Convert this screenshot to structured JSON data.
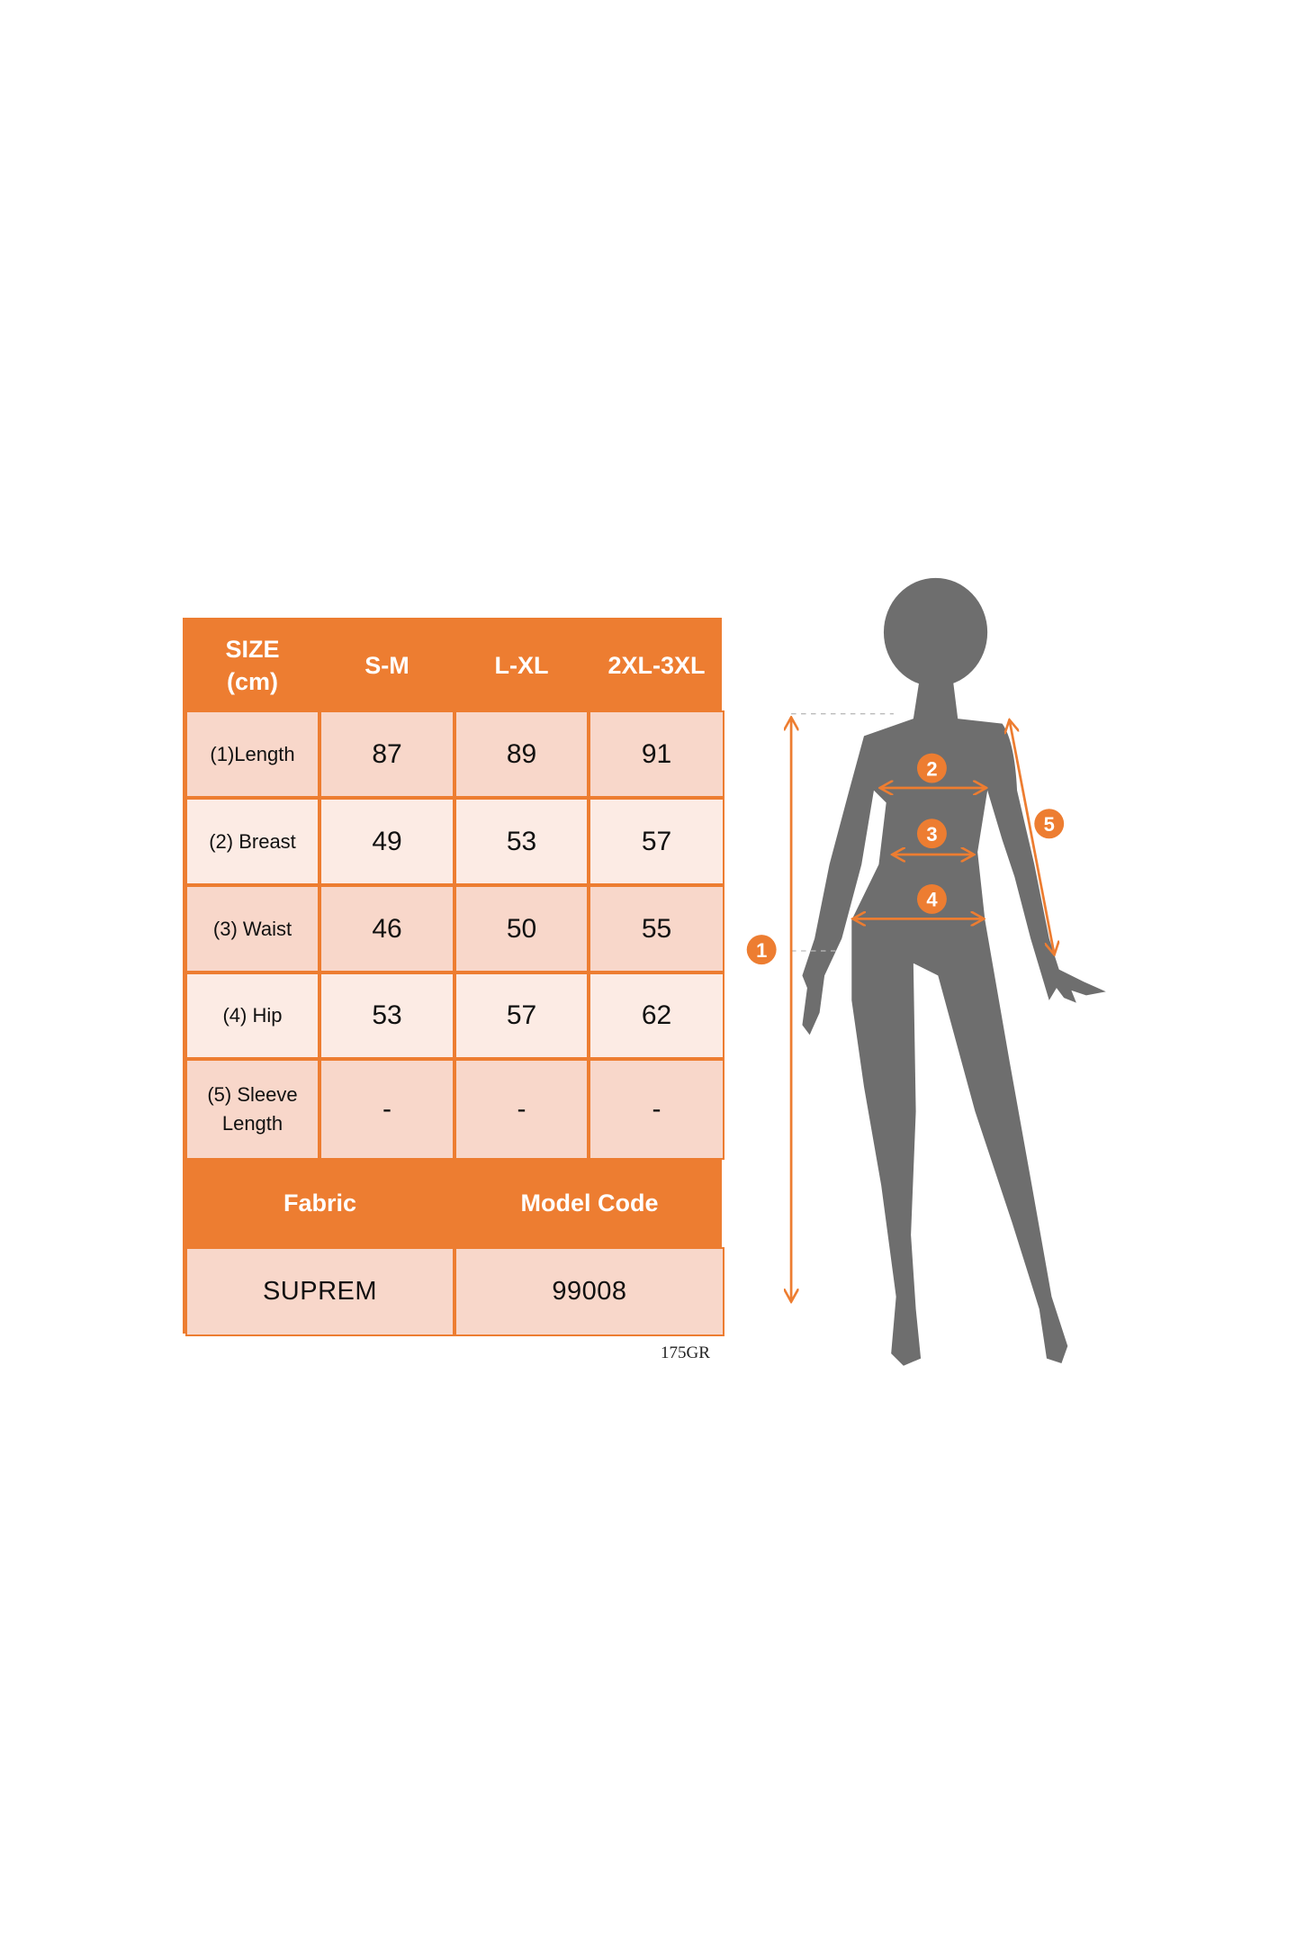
{
  "table": {
    "header": {
      "size_label_line1": "SIZE",
      "size_label_line2": "(cm)",
      "sizes": [
        "S-M",
        "L-XL",
        "2XL-3XL"
      ]
    },
    "rows": [
      {
        "label": "(1)Length",
        "values": [
          "87",
          "89",
          "91"
        ]
      },
      {
        "label": "(2) Breast",
        "values": [
          "49",
          "53",
          "57"
        ]
      },
      {
        "label": "(3) Waist",
        "values": [
          "46",
          "50",
          "55"
        ]
      },
      {
        "label": "(4) Hip",
        "values": [
          "53",
          "57",
          "62"
        ]
      },
      {
        "label_line1": "(5) Sleeve",
        "label_line2": "Length",
        "values": [
          "-",
          "-",
          "-"
        ]
      }
    ],
    "footer_headers": {
      "fabric": "Fabric",
      "model_code": "Model Code"
    },
    "footer_values": {
      "fabric": "SUPREM",
      "model_code": "99008"
    }
  },
  "weight_code": "175GR",
  "figure": {
    "markers": [
      "1",
      "2",
      "3",
      "4",
      "5"
    ]
  },
  "colors": {
    "accent": "#ED7D31",
    "cell_dark": "#F8D7CA",
    "cell_light": "#FCEBE4",
    "silhouette": "#6E6E6E"
  }
}
